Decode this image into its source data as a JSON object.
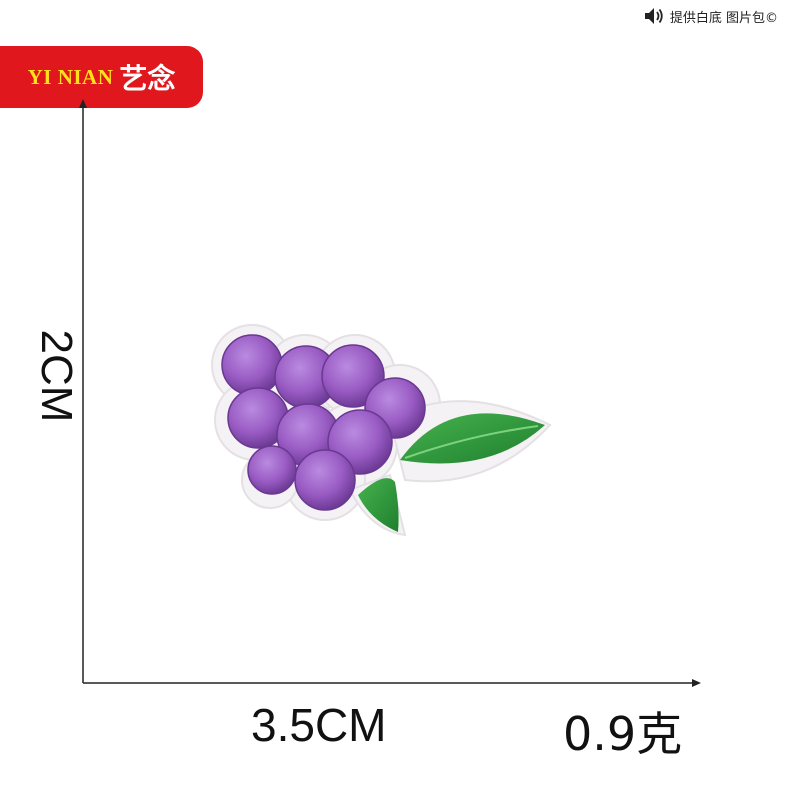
{
  "watermark": {
    "icon": "speaker-icon",
    "text": "提供白底 图片包©"
  },
  "brand": {
    "latin": "YI NIAN",
    "cjk": "艺念",
    "background": "#e0171d",
    "latin_color": "#ffe21a"
  },
  "dimensions": {
    "height": "2CM",
    "width": "3.5CM",
    "weight": "0.9克"
  },
  "product": {
    "icon": "grape-embroidery-patch",
    "berry_color": "#9a5cc4",
    "leaf_color": "#2a9a3a"
  }
}
